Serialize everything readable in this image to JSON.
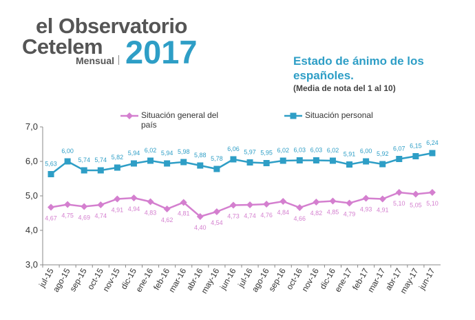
{
  "logo": {
    "line1": "el Observatorio",
    "line2": "Cetelem",
    "edition": "Mensual",
    "year": "2017"
  },
  "chart_data": {
    "type": "line",
    "title": "Estado de ánimo de los españoles.",
    "subtitle": "(Media de nota del 1 al 10)",
    "categories": [
      "jul-15",
      "ago-15",
      "sep-15",
      "oct-15",
      "nov-15",
      "dic-15",
      "ene-16",
      "feb-16",
      "mar-16",
      "abr-16",
      "may-16",
      "jun-16",
      "jul-16",
      "ago-16",
      "sep-16",
      "oct-16",
      "nov-16",
      "dic-16",
      "ene-17",
      "feb-17",
      "mar-17",
      "abr-17",
      "may-17",
      "jun-17"
    ],
    "series": [
      {
        "name": "Situación general del país",
        "color": "#d47fcf",
        "marker": "diamond",
        "values": [
          4.67,
          4.75,
          4.69,
          4.74,
          4.91,
          4.94,
          4.83,
          4.62,
          4.81,
          4.4,
          4.54,
          4.73,
          4.74,
          4.76,
          4.84,
          4.66,
          4.82,
          4.85,
          4.79,
          4.93,
          4.91,
          5.1,
          5.05,
          5.1
        ],
        "value_labels": [
          "4,67",
          "4,75",
          "4,69",
          "4,74",
          "4,91",
          "4,94",
          "4,83",
          "4,62",
          "4,81",
          "4,40",
          "4,54",
          "4,73",
          "4,74",
          "4,76",
          "4,84",
          "4,66",
          "4,82",
          "4,85",
          "4,79",
          "4,93",
          "4,91",
          "5,10",
          "5,05",
          "5,10"
        ]
      },
      {
        "name": "Situación personal",
        "color": "#2e9ec6",
        "marker": "square",
        "values": [
          5.63,
          6.0,
          5.74,
          5.74,
          5.82,
          5.94,
          6.02,
          5.94,
          5.98,
          5.88,
          5.78,
          6.06,
          5.97,
          5.95,
          6.02,
          6.03,
          6.03,
          6.02,
          5.91,
          6.0,
          5.92,
          6.07,
          6.15,
          6.24
        ],
        "value_labels": [
          "5,63",
          "6,00",
          "5,74",
          "5,74",
          "5,82",
          "5,94",
          "6,02",
          "5,94",
          "5,98",
          "5,88",
          "5,78",
          "6,06",
          "5,97",
          "5,95",
          "6,02",
          "6,03",
          "6,03",
          "6,02",
          "5,91",
          "6,00",
          "5,92",
          "6,07",
          "6,15",
          "6,24"
        ]
      }
    ],
    "ylim": [
      3,
      7
    ],
    "yticks": [
      {
        "value": 3,
        "label": "3,0"
      },
      {
        "value": 4,
        "label": "4,0"
      },
      {
        "value": 5,
        "label": "5,0"
      },
      {
        "value": 6,
        "label": "6,0"
      },
      {
        "value": 7,
        "label": "7,0"
      }
    ],
    "grid": false
  }
}
